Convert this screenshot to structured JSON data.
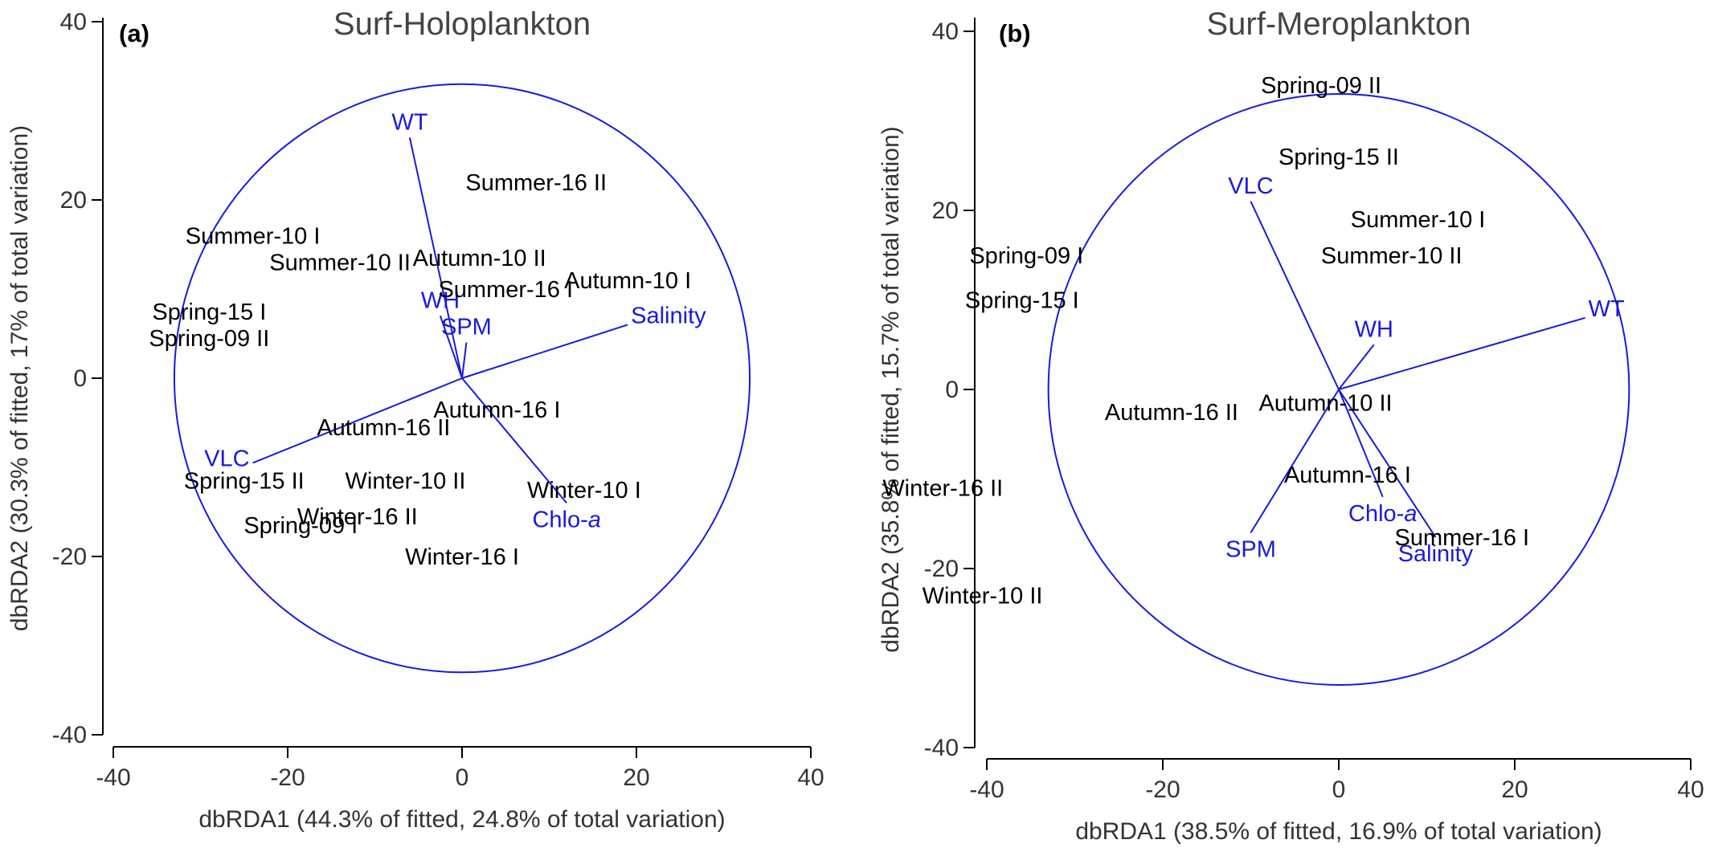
{
  "chart_data": [
    {
      "type": "scatter",
      "panel": "(a)",
      "title": "Surf-Holoplankton",
      "xlabel": "dbRDA1 (44.3% of fitted, 24.8% of total variation)",
      "ylabel": "dbRDA2 (30.3% of fitted, 17% of total variation)",
      "xlim": [
        -40,
        40
      ],
      "ylim": [
        -40,
        40
      ],
      "xticks": [
        -40,
        -20,
        0,
        20,
        40
      ],
      "yticks": [
        -40,
        -20,
        0,
        20,
        40
      ],
      "circle_radius": 33,
      "points": [
        {
          "label": "Summer-16 II",
          "x": 8.5,
          "y": 22
        },
        {
          "label": "Summer-10 I",
          "x": -24,
          "y": 16
        },
        {
          "label": "Summer-10 II",
          "x": -14,
          "y": 13
        },
        {
          "label": "Autumn-10 II",
          "x": 2,
          "y": 13.5
        },
        {
          "label": "Autumn-10 I",
          "x": 19,
          "y": 11
        },
        {
          "label": "Summer-16 I",
          "x": 5,
          "y": 10
        },
        {
          "label": "Spring-15 I",
          "x": -29,
          "y": 7.5
        },
        {
          "label": "Spring-09 II",
          "x": -29,
          "y": 4.5
        },
        {
          "label": "Autumn-16 I",
          "x": 4,
          "y": -3.5
        },
        {
          "label": "Autumn-16 II",
          "x": -9,
          "y": -5.5
        },
        {
          "label": "Spring-15 II",
          "x": -25,
          "y": -11.5
        },
        {
          "label": "Winter-10 II",
          "x": -6.5,
          "y": -11.5
        },
        {
          "label": "Winter-10 I",
          "x": 14,
          "y": -12.5
        },
        {
          "label": "Winter-16 II",
          "x": -12,
          "y": -15.5
        },
        {
          "label": "Spring-09 I",
          "x": -18.5,
          "y": -16.5
        },
        {
          "label": "Winter-16 I",
          "x": 0,
          "y": -20
        }
      ],
      "vectors": [
        {
          "label": "WT",
          "x": -6,
          "y": 27
        },
        {
          "label": "WH",
          "x": -2.5,
          "y": 7
        },
        {
          "label": "SPM",
          "x": 0.5,
          "y": 4
        },
        {
          "label": "Salinity",
          "x": 19,
          "y": 6
        },
        {
          "label": "VLC",
          "x": -24,
          "y": -9.5
        },
        {
          "label": "Chlo-",
          "italic": "a",
          "x": 12,
          "y": -14
        }
      ]
    },
    {
      "type": "scatter",
      "panel": "(b)",
      "title": "Surf-Meroplankton",
      "xlabel": "dbRDA1 (38.5% of fitted, 16.9% of total variation)",
      "ylabel": "dbRDA2 (35.8% of fitted, 15.7% of total variation)",
      "xlim": [
        -40,
        40
      ],
      "ylim": [
        -40,
        40
      ],
      "xticks": [
        -40,
        -20,
        0,
        20,
        40
      ],
      "yticks": [
        -40,
        -20,
        0,
        20,
        40
      ],
      "circle_radius": 33,
      "points": [
        {
          "label": "Spring-09 II",
          "x": -2,
          "y": 34
        },
        {
          "label": "Spring-15 II",
          "x": 0,
          "y": 26
        },
        {
          "label": "Summer-10 I",
          "x": 9,
          "y": 19
        },
        {
          "label": "Summer-10 II",
          "x": 6,
          "y": 15
        },
        {
          "label": "Spring-09 I",
          "x": -35.5,
          "y": 15
        },
        {
          "label": "Spring-15 I",
          "x": -36,
          "y": 10
        },
        {
          "label": "Autumn-16 II",
          "x": -19,
          "y": -2.5
        },
        {
          "label": "Autumn-10 II",
          "x": -1.5,
          "y": -1.5
        },
        {
          "label": "Autumn-16 I",
          "x": 1,
          "y": -9.5
        },
        {
          "label": "Winter-16 II",
          "x": -45,
          "y": -11
        },
        {
          "label": "Summer-16 I",
          "x": 14,
          "y": -16.5
        },
        {
          "label": "Winter-10 II",
          "x": -40.5,
          "y": -23
        }
      ],
      "vectors": [
        {
          "label": "WT",
          "x": 28,
          "y": 8
        },
        {
          "label": "VLC",
          "x": -10,
          "y": 21
        },
        {
          "label": "WH",
          "x": 4,
          "y": 5
        },
        {
          "label": "SPM",
          "x": -10,
          "y": -16
        },
        {
          "label": "Chlo-",
          "italic": "a",
          "x": 5,
          "y": -12
        },
        {
          "label": "Salinity",
          "x": 11,
          "y": -16.5
        }
      ]
    }
  ]
}
